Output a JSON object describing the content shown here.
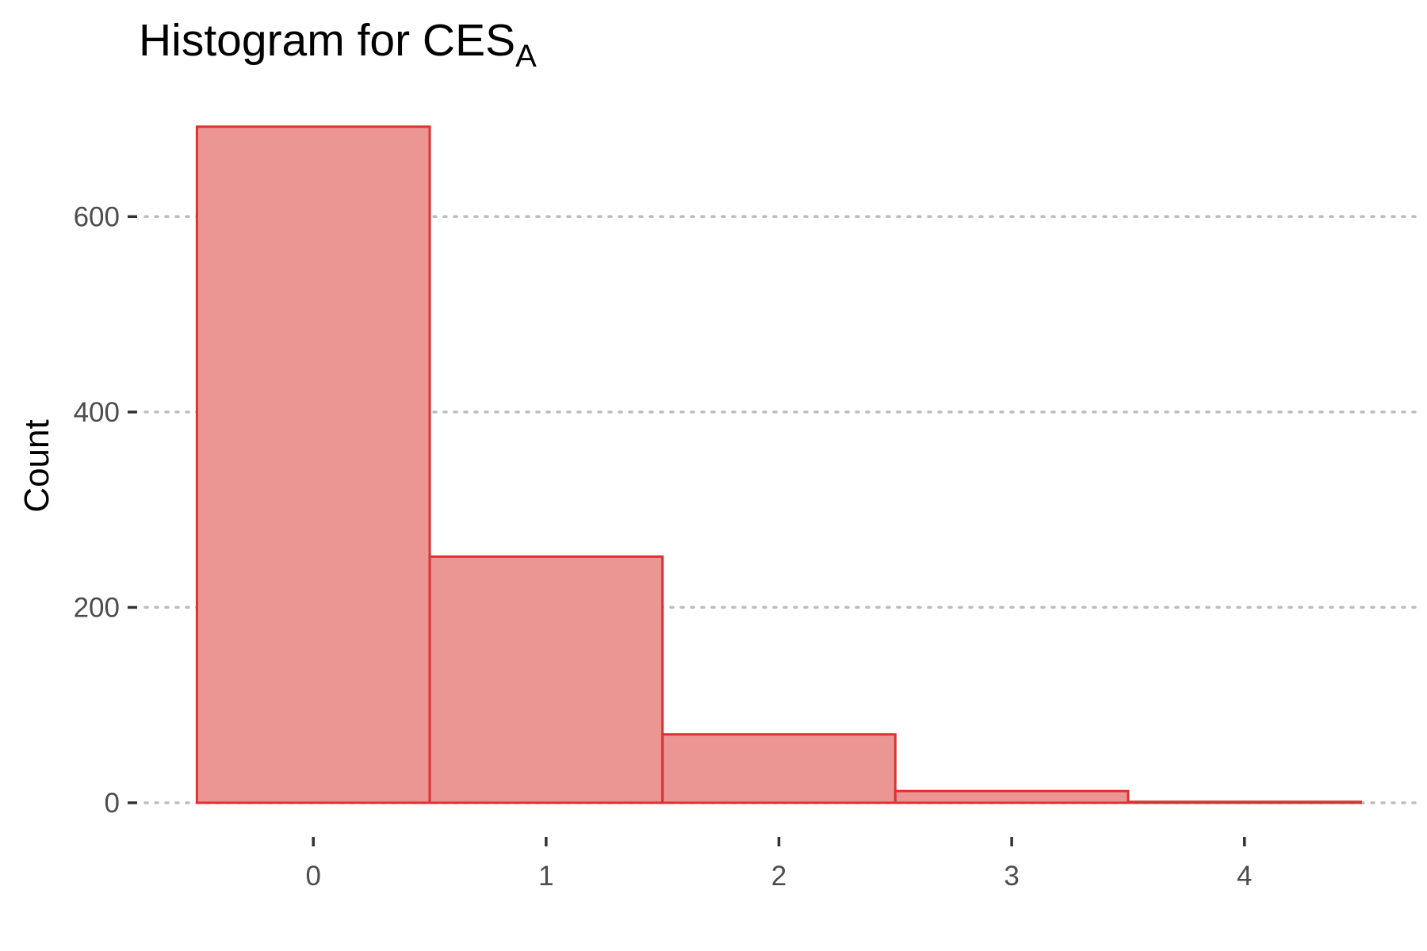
{
  "chart_data": {
    "type": "bar",
    "title": "Histogram for CES",
    "title_subscript": "A",
    "xlabel": "",
    "ylabel": "Count",
    "categories": [
      "0",
      "1",
      "2",
      "3",
      "4"
    ],
    "x": [
      0,
      1,
      2,
      3,
      4
    ],
    "values": [
      692,
      252,
      70,
      12,
      1
    ],
    "xlim": [
      -0.75,
      4.75
    ],
    "ylim": [
      0,
      700
    ],
    "yticks": [
      0,
      200,
      400,
      600
    ],
    "ytick_labels": [
      "0",
      "200",
      "400",
      "600"
    ],
    "xticks": [
      0,
      1,
      2,
      3,
      4
    ],
    "xtick_labels": [
      "0",
      "1",
      "2",
      "3",
      "4"
    ],
    "grid": "horizontal dotted",
    "legend": "none",
    "colors": {
      "bar_fill": "#ec9694",
      "bar_stroke": "#dc3232"
    }
  }
}
